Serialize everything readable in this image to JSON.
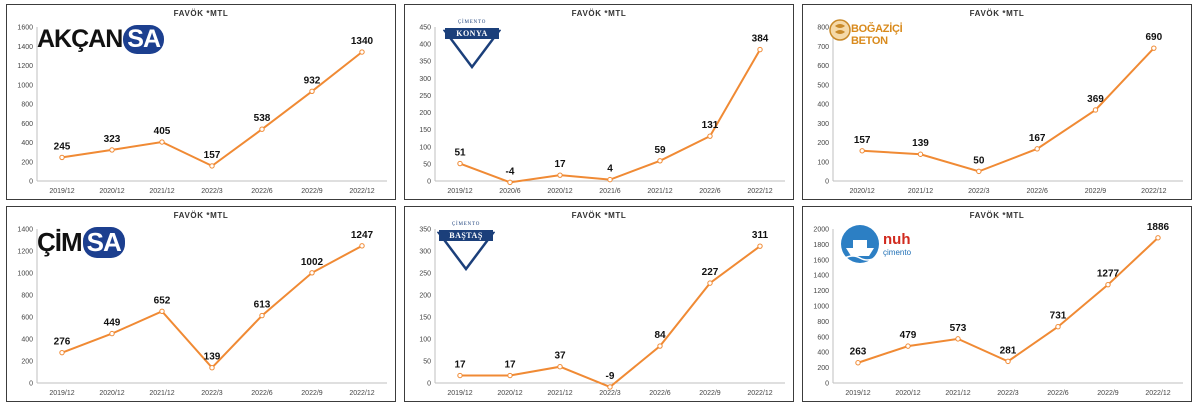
{
  "colors": {
    "line": "#f08a34",
    "marker_fill": "#ffffff",
    "axis": "#bfbfbf",
    "border": "#3c3c3c"
  },
  "chart_data": [
    {
      "type": "line",
      "title": "FAVÖK *MTL",
      "logo": {
        "name": "akcansa",
        "text_main": "AKÇAN",
        "text_badge": "SA"
      },
      "categories": [
        "2019/12",
        "2020/12",
        "2021/12",
        "2022/3",
        "2022/6",
        "2022/9",
        "2022/12"
      ],
      "values": [
        245,
        323,
        405,
        157,
        538,
        932,
        1340
      ],
      "ylim": [
        0,
        1600
      ],
      "yticks": [
        0,
        200,
        400,
        600,
        800,
        1000,
        1200,
        1400,
        1600
      ],
      "grid": false,
      "legend": "none"
    },
    {
      "type": "line",
      "title": "FAVÖK *MTL",
      "logo": {
        "name": "cimento-konya",
        "text_small": "ÇİMENTO",
        "text_main": "KONYA"
      },
      "categories": [
        "2019/12",
        "2020/6",
        "2020/12",
        "2021/6",
        "2021/12",
        "2022/6",
        "2022/12"
      ],
      "values": [
        51,
        -4,
        17,
        4,
        59,
        131,
        384
      ],
      "ylim": [
        0,
        450
      ],
      "yticks": [
        0,
        50,
        100,
        150,
        200,
        250,
        300,
        350,
        400,
        450
      ],
      "grid": false,
      "legend": "none"
    },
    {
      "type": "line",
      "title": "FAVÖK *MTL",
      "logo": {
        "name": "bogazici-beton",
        "text_main": "BOĞAZİÇİ BETON"
      },
      "categories": [
        "2020/12",
        "2021/12",
        "2022/3",
        "2022/6",
        "2022/9",
        "2022/12"
      ],
      "values": [
        157,
        139,
        50,
        167,
        369,
        690
      ],
      "ylim": [
        0,
        800
      ],
      "yticks": [
        0,
        100,
        200,
        300,
        400,
        500,
        600,
        700,
        800
      ],
      "grid": false,
      "legend": "none"
    },
    {
      "type": "line",
      "title": "FAVÖK *MTL",
      "logo": {
        "name": "cimsa",
        "text_main": "ÇİM",
        "text_badge": "SA"
      },
      "categories": [
        "2019/12",
        "2020/12",
        "2021/12",
        "2022/3",
        "2022/6",
        "2022/9",
        "2022/12"
      ],
      "values": [
        276,
        449,
        652,
        139,
        613,
        1002,
        1247
      ],
      "ylim": [
        0,
        1400
      ],
      "yticks": [
        0,
        200,
        400,
        600,
        800,
        1000,
        1200,
        1400
      ],
      "grid": false,
      "legend": "none"
    },
    {
      "type": "line",
      "title": "FAVÖK *MTL",
      "logo": {
        "name": "cimento-bastas",
        "text_small": "ÇİMENTO",
        "text_main": "BAŞTAŞ"
      },
      "categories": [
        "2019/12",
        "2020/12",
        "2021/12",
        "2022/3",
        "2022/6",
        "2022/9",
        "2022/12"
      ],
      "values": [
        17,
        17,
        37,
        -9,
        84,
        227,
        311
      ],
      "ylim": [
        0,
        350
      ],
      "yticks": [
        0,
        50,
        100,
        150,
        200,
        250,
        300,
        350
      ],
      "grid": false,
      "legend": "none"
    },
    {
      "type": "line",
      "title": "FAVÖK *MTL",
      "logo": {
        "name": "nuh-cimento",
        "text_main": "nuh",
        "text_sub": "çimento"
      },
      "categories": [
        "2019/12",
        "2020/12",
        "2021/12",
        "2022/3",
        "2022/6",
        "2022/9",
        "2022/12"
      ],
      "values": [
        263,
        479,
        573,
        281,
        731,
        1277,
        1886
      ],
      "ylim": [
        0,
        2000
      ],
      "yticks": [
        0,
        200,
        400,
        600,
        800,
        1000,
        1200,
        1400,
        1600,
        1800,
        2000
      ],
      "grid": false,
      "legend": "none"
    }
  ]
}
